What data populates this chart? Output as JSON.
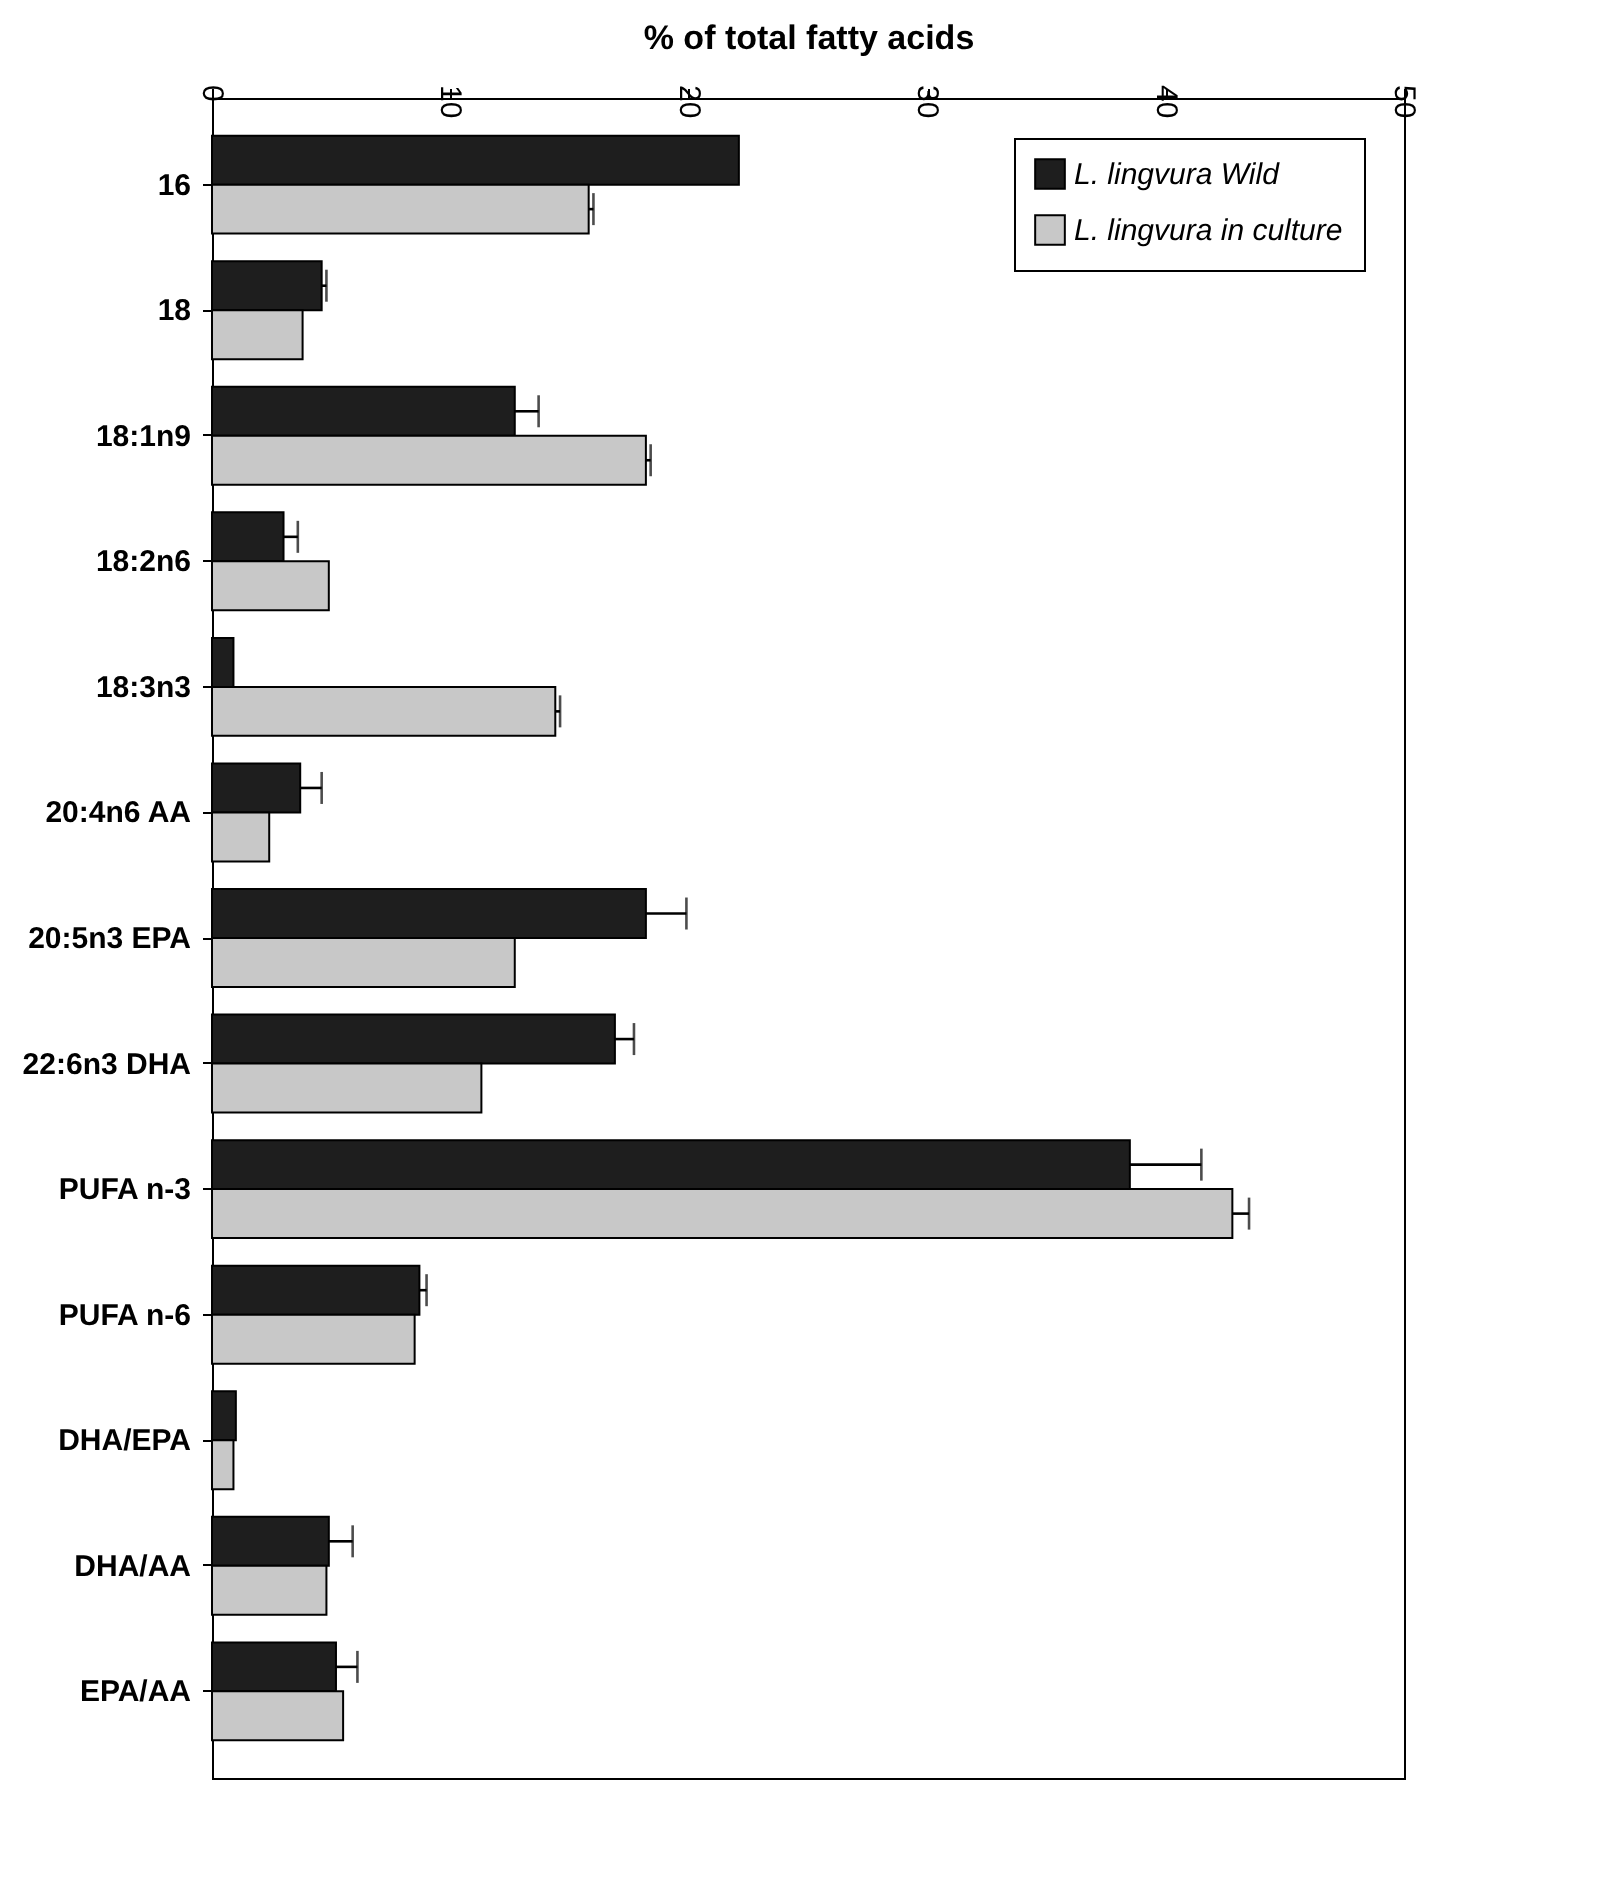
{
  "chart_data": {
    "type": "bar",
    "orientation": "horizontal",
    "xlabel": "% of total fatty acids",
    "categories": [
      "16",
      "18",
      "18:1n9",
      "18:2n6",
      "18:3n3",
      "20:4n6 AA",
      "20:5n3 EPA",
      "22:6n3 DHA",
      "PUFA n-3",
      "PUFA n-6",
      "DHA/EPA",
      "DHA/AA",
      "EPA/AA"
    ],
    "series": [
      {
        "name": "L. lingvura Wild",
        "color": "#1e1e1e",
        "values": [
          22.1,
          4.6,
          12.7,
          3.0,
          0.9,
          3.7,
          18.2,
          16.9,
          38.5,
          8.7,
          1.0,
          4.9,
          5.2
        ],
        "errors": [
          null,
          [
            4.6,
            4.8
          ],
          [
            12.7,
            13.7
          ],
          [
            3.0,
            3.6
          ],
          null,
          [
            3.7,
            4.6
          ],
          [
            18.2,
            19.9
          ],
          [
            16.9,
            17.7
          ],
          [
            38.5,
            41.5
          ],
          [
            8.7,
            9.0
          ],
          null,
          [
            4.9,
            5.9
          ],
          [
            5.2,
            6.1
          ]
        ]
      },
      {
        "name": "L. lingvura in culture",
        "color": "#c8c8c8",
        "values": [
          15.8,
          3.8,
          18.2,
          4.9,
          14.4,
          2.4,
          12.7,
          11.3,
          42.8,
          8.5,
          0.9,
          4.8,
          5.5
        ],
        "errors": [
          [
            15.8,
            16.0
          ],
          null,
          [
            18.2,
            18.4
          ],
          null,
          [
            14.4,
            14.6
          ],
          null,
          null,
          null,
          [
            42.8,
            43.5
          ],
          null,
          null,
          null,
          null
        ]
      }
    ],
    "xlim": [
      0,
      50
    ],
    "xticks": [
      0,
      10,
      20,
      30,
      40,
      50
    ],
    "grid": false,
    "legend": "top right"
  }
}
